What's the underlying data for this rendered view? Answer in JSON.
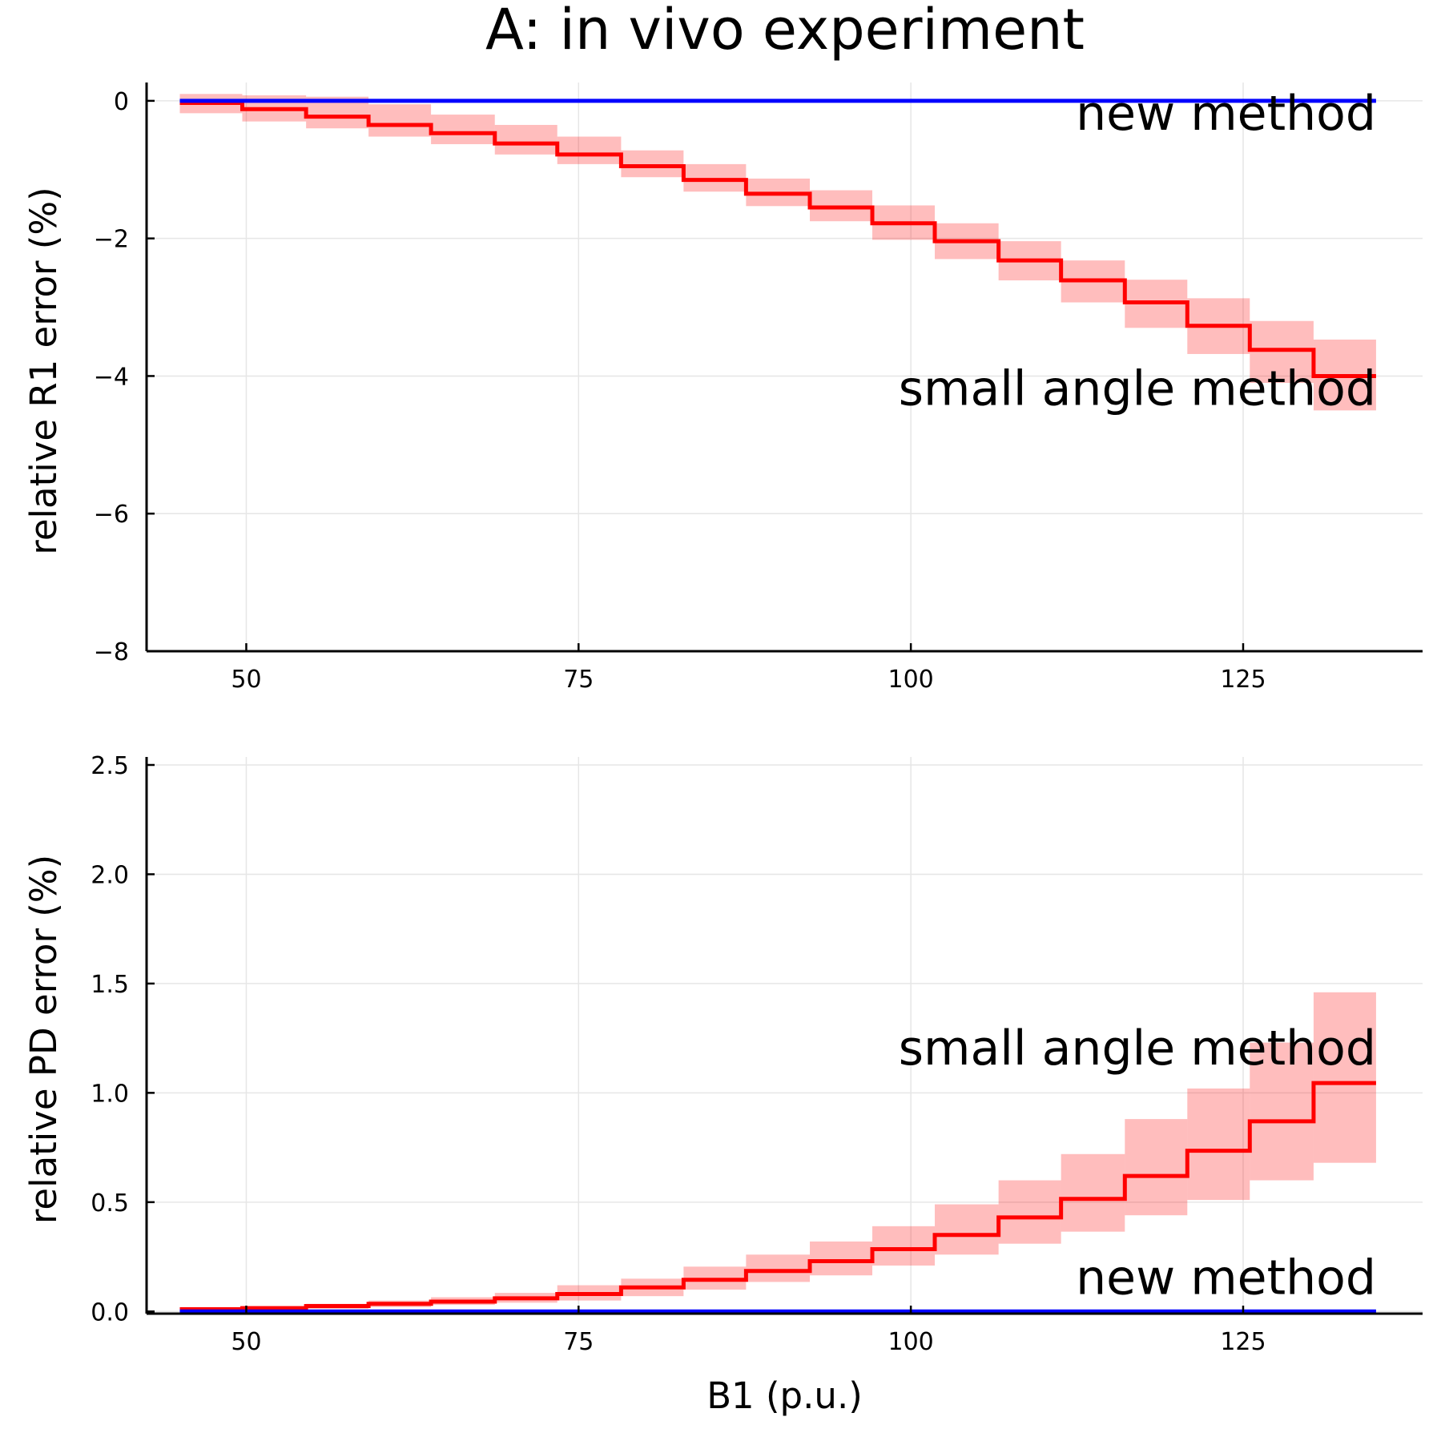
{
  "figure": {
    "title": "A: in vivo experiment"
  },
  "chart_data": [
    {
      "type": "line",
      "title": "A: in vivo experiment",
      "xlabel": "",
      "ylabel": "relative R1 error (%)",
      "xlim": [
        42.5,
        138.5
      ],
      "ylim": [
        -8,
        0.15
      ],
      "xticks": [
        50,
        75,
        100,
        125
      ],
      "xtick_labels": [
        "50",
        "75",
        "100",
        "125"
      ],
      "yticks": [
        -8,
        -6,
        -4,
        -2,
        0
      ],
      "ytick_labels": [
        "−8",
        "−6",
        "−4",
        "−2",
        "0"
      ],
      "grid": true,
      "legend": "none",
      "bin_edges": [
        45,
        49.7,
        54.5,
        59.2,
        63.9,
        68.7,
        73.4,
        78.2,
        82.9,
        87.6,
        92.4,
        97.1,
        101.8,
        106.6,
        111.3,
        116.1,
        120.8,
        125.5,
        130.3,
        135
      ],
      "series": [
        {
          "name": "small angle method",
          "color": "#ff0000",
          "style": "step",
          "values": [
            -0.03,
            -0.12,
            -0.23,
            -0.35,
            -0.47,
            -0.62,
            -0.78,
            -0.95,
            -1.15,
            -1.35,
            -1.55,
            -1.78,
            -2.04,
            -2.32,
            -2.61,
            -2.93,
            -3.27,
            -3.62,
            -4.0
          ],
          "band_low": [
            -0.18,
            -0.3,
            -0.4,
            -0.52,
            -0.63,
            -0.78,
            -0.92,
            -1.11,
            -1.32,
            -1.53,
            -1.75,
            -2.02,
            -2.3,
            -2.61,
            -2.93,
            -3.3,
            -3.68,
            -4.1,
            -4.5
          ],
          "band_high": [
            0.1,
            0.08,
            0.06,
            -0.05,
            -0.2,
            -0.35,
            -0.52,
            -0.72,
            -0.92,
            -1.13,
            -1.3,
            -1.52,
            -1.78,
            -2.04,
            -2.32,
            -2.6,
            -2.87,
            -3.2,
            -3.47
          ]
        },
        {
          "name": "new method",
          "color": "#0000ff",
          "style": "step",
          "values": [
            0,
            0,
            0,
            0,
            0,
            0,
            0,
            0,
            0,
            0,
            0,
            0,
            0,
            0,
            0,
            0,
            0,
            0,
            0
          ]
        }
      ],
      "annotations": [
        {
          "text": "new method",
          "x": 135,
          "y": -0.42
        },
        {
          "text": "small angle method",
          "x": 135,
          "y": -4.42
        }
      ]
    },
    {
      "type": "line",
      "title": "",
      "xlabel": "B1 (p.u.)",
      "ylabel": "relative PD error (%)",
      "xlim": [
        42.5,
        138.5
      ],
      "ylim": [
        -0.01,
        2.5
      ],
      "xticks": [
        50,
        75,
        100,
        125
      ],
      "xtick_labels": [
        "50",
        "75",
        "100",
        "125"
      ],
      "yticks": [
        0,
        0.5,
        1,
        1.5,
        2,
        2.5
      ],
      "ytick_labels": [
        "0.0",
        "0.5",
        "1.0",
        "1.5",
        "2.0",
        "2.5"
      ],
      "grid": true,
      "legend": "none",
      "bin_edges": [
        45,
        49.7,
        54.5,
        59.2,
        63.9,
        68.7,
        73.4,
        78.2,
        82.9,
        87.6,
        92.4,
        97.1,
        101.8,
        106.6,
        111.3,
        116.1,
        120.8,
        125.5,
        130.3,
        135
      ],
      "series": [
        {
          "name": "small angle method",
          "color": "#ff0000",
          "style": "step",
          "values": [
            0.01,
            0.015,
            0.025,
            0.035,
            0.045,
            0.06,
            0.08,
            0.11,
            0.145,
            0.185,
            0.23,
            0.285,
            0.35,
            0.43,
            0.515,
            0.62,
            0.735,
            0.87,
            1.045
          ],
          "band_low": [
            0.0,
            0.005,
            0.012,
            0.02,
            0.03,
            0.04,
            0.05,
            0.07,
            0.1,
            0.135,
            0.165,
            0.21,
            0.26,
            0.31,
            0.365,
            0.44,
            0.51,
            0.6,
            0.68
          ],
          "band_high": [
            0.02,
            0.025,
            0.035,
            0.05,
            0.065,
            0.085,
            0.12,
            0.15,
            0.205,
            0.26,
            0.32,
            0.39,
            0.49,
            0.6,
            0.72,
            0.88,
            1.02,
            1.23,
            1.46
          ]
        },
        {
          "name": "new method",
          "color": "#0000ff",
          "style": "step",
          "values": [
            0,
            0,
            0,
            0,
            0,
            0,
            0,
            0,
            0,
            0,
            0,
            0,
            0,
            0,
            0,
            0,
            0,
            0,
            0
          ]
        }
      ],
      "annotations": [
        {
          "text": "small angle method",
          "x": 135,
          "y": 1.13
        },
        {
          "text": "new method",
          "x": 135,
          "y": 0.08
        }
      ]
    }
  ]
}
